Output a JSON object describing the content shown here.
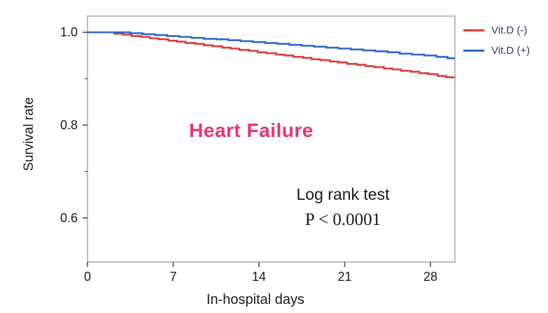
{
  "figure": {
    "annotation_title": "Heart Failure",
    "annotation_color": "#e8356d",
    "stats_line1": "Log rank test",
    "stats_line2": "P < 0.0001"
  },
  "chart_data": {
    "type": "line",
    "subtype": "kaplan-meier-step-survival",
    "title": "",
    "xlabel": "In-hospital days",
    "ylabel": "Survival rate",
    "xlim": [
      0,
      30
    ],
    "ylim": [
      0.505,
      1.035
    ],
    "grid": false,
    "legend_position": "top-right-outside",
    "frame_color": "#a8a8a8",
    "tick_color": "#4d4d4d",
    "x_ticks": [
      {
        "value": 0,
        "label": "0"
      },
      {
        "value": 7,
        "label": "7"
      },
      {
        "value": 14,
        "label": "14"
      },
      {
        "value": 21,
        "label": "21"
      },
      {
        "value": 28,
        "label": "28"
      }
    ],
    "y_ticks": [
      {
        "value": 1.0,
        "label": "1.0"
      },
      {
        "value": 0.8,
        "label": "0.8"
      },
      {
        "value": 0.6,
        "label": "0.6"
      }
    ],
    "y_minor_ticks": [
      0.9,
      0.7
    ],
    "series": [
      {
        "name": "Vit.D (-)",
        "color": "#db3b3c",
        "x": [
          0,
          1.5,
          2.2,
          2.9,
          3.6,
          4.4,
          5.1,
          5.8,
          6.6,
          7.3,
          8.0,
          8.8,
          9.5,
          10.2,
          11.0,
          11.7,
          12.4,
          13.2,
          13.9,
          14.6,
          15.4,
          16.1,
          16.8,
          17.6,
          18.3,
          19.0,
          19.8,
          20.5,
          21.2,
          22.0,
          22.7,
          23.4,
          24.2,
          24.9,
          25.6,
          26.4,
          27.1,
          27.8,
          28.6,
          29.3
        ],
        "y": [
          1.0,
          1.0,
          0.997,
          0.995,
          0.992,
          0.99,
          0.987,
          0.985,
          0.982,
          0.98,
          0.977,
          0.975,
          0.972,
          0.97,
          0.967,
          0.965,
          0.962,
          0.96,
          0.957,
          0.955,
          0.952,
          0.95,
          0.947,
          0.945,
          0.942,
          0.94,
          0.937,
          0.935,
          0.932,
          0.93,
          0.927,
          0.925,
          0.922,
          0.92,
          0.917,
          0.915,
          0.912,
          0.91,
          0.906,
          0.903
        ]
      },
      {
        "name": "Vit.D (+)",
        "color": "#2e68c5",
        "x": [
          0,
          2.5,
          3.5,
          4.5,
          5.5,
          6.5,
          7.5,
          8.5,
          9.5,
          10.5,
          11.5,
          12.5,
          13.5,
          14.5,
          15.5,
          16.5,
          17.5,
          18.5,
          19.5,
          20.5,
          21.5,
          22.5,
          23.5,
          24.5,
          25.5,
          26.5,
          27.5,
          28.5,
          29.4
        ],
        "y": [
          1.0,
          1.0,
          0.998,
          0.996,
          0.994,
          0.992,
          0.99,
          0.988,
          0.986,
          0.985,
          0.983,
          0.981,
          0.979,
          0.977,
          0.975,
          0.973,
          0.971,
          0.969,
          0.967,
          0.965,
          0.963,
          0.961,
          0.959,
          0.957,
          0.954,
          0.952,
          0.95,
          0.947,
          0.944
        ]
      }
    ]
  }
}
